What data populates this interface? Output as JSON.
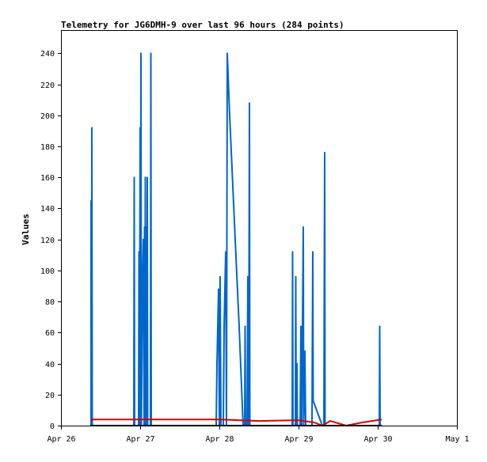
{
  "chart_data": {
    "type": "line",
    "title": "Telemetry for JG6DMH-9 over last 96 hours (284 points)",
    "xlabel": "",
    "ylabel": "Values",
    "xlim": [
      "Apr 26",
      "May 1"
    ],
    "ylim": [
      0,
      255
    ],
    "x_tick_labels": [
      "Apr 26",
      "Apr 27",
      "Apr 28",
      "Apr 29",
      "Apr 30",
      "May 1"
    ],
    "y_tick_values": [
      0,
      20,
      40,
      60,
      80,
      100,
      120,
      140,
      160,
      180,
      200,
      220,
      240
    ],
    "grid": false,
    "legend": "none",
    "x_unit": "days since Apr 26 00:00",
    "series": [
      {
        "color": "#0066cc",
        "points": [
          [
            0.38,
            0
          ],
          [
            0.38,
            145
          ],
          [
            0.385,
            0
          ],
          [
            0.39,
            192
          ],
          [
            0.395,
            0
          ],
          [
            0.92,
            0
          ],
          [
            0.925,
            160
          ],
          [
            0.93,
            0
          ],
          [
            0.98,
            0
          ],
          [
            0.985,
            112
          ],
          [
            0.99,
            0
          ],
          [
            1.0,
            192
          ],
          [
            1.005,
            0
          ],
          [
            1.01,
            240
          ],
          [
            1.015,
            0
          ],
          [
            1.03,
            96
          ],
          [
            1.04,
            120
          ],
          [
            1.05,
            0
          ],
          [
            1.055,
            128
          ],
          [
            1.06,
            0
          ],
          [
            1.065,
            160
          ],
          [
            1.07,
            0
          ],
          [
            1.08,
            128
          ],
          [
            1.085,
            0
          ],
          [
            1.09,
            160
          ],
          [
            1.095,
            0
          ],
          [
            1.13,
            0
          ],
          [
            1.135,
            240
          ],
          [
            1.14,
            0
          ],
          [
            1.96,
            0
          ],
          [
            1.97,
            40
          ],
          [
            1.98,
            64
          ],
          [
            1.99,
            88
          ],
          [
            2.0,
            0
          ],
          [
            2.01,
            96
          ],
          [
            2.02,
            0
          ],
          [
            2.05,
            0
          ],
          [
            2.06,
            64
          ],
          [
            2.07,
            88
          ],
          [
            2.08,
            112
          ],
          [
            2.09,
            0
          ],
          [
            2.1,
            240
          ],
          [
            2.13,
            200
          ],
          [
            2.2,
            120
          ],
          [
            2.25,
            64
          ],
          [
            2.3,
            0
          ],
          [
            2.32,
            0
          ],
          [
            2.325,
            64
          ],
          [
            2.33,
            0
          ],
          [
            2.35,
            0
          ],
          [
            2.36,
            96
          ],
          [
            2.37,
            0
          ],
          [
            2.38,
            208
          ],
          [
            2.385,
            0
          ],
          [
            2.92,
            0
          ],
          [
            2.925,
            112
          ],
          [
            2.93,
            0
          ],
          [
            2.96,
            0
          ],
          [
            2.965,
            96
          ],
          [
            2.97,
            0
          ],
          [
            2.98,
            40
          ],
          [
            2.985,
            0
          ],
          [
            3.02,
            0
          ],
          [
            3.03,
            64
          ],
          [
            3.04,
            0
          ],
          [
            3.06,
            128
          ],
          [
            3.065,
            0
          ],
          [
            3.08,
            48
          ],
          [
            3.09,
            0
          ],
          [
            3.17,
            0
          ],
          [
            3.18,
            112
          ],
          [
            3.185,
            16
          ],
          [
            3.3,
            0
          ],
          [
            3.32,
            0
          ],
          [
            3.33,
            176
          ],
          [
            3.335,
            0
          ],
          [
            4.02,
            0
          ],
          [
            4.025,
            64
          ],
          [
            4.03,
            0
          ]
        ]
      },
      {
        "color": "#dd0000",
        "points": [
          [
            0.37,
            4
          ],
          [
            1.1,
            4
          ],
          [
            2.0,
            4
          ],
          [
            2.5,
            3
          ],
          [
            3.0,
            3.5
          ],
          [
            3.2,
            2
          ],
          [
            3.3,
            0
          ],
          [
            3.4,
            3
          ],
          [
            3.6,
            0
          ],
          [
            3.8,
            2
          ],
          [
            4.05,
            4
          ]
        ]
      },
      {
        "color": "#000000",
        "points": [
          [
            0.37,
            0
          ],
          [
            4.05,
            0
          ]
        ]
      }
    ]
  }
}
